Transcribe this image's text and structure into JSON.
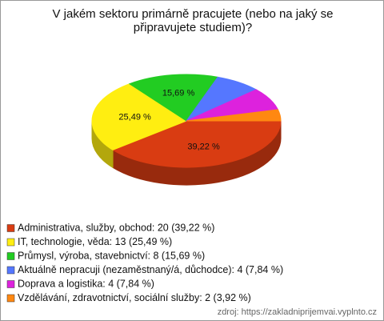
{
  "chart_data": {
    "type": "pie3d",
    "title": "V jakém sektoru primárně pracujete (nebo na jaký se připravujete studiem)?",
    "categories": [
      "Administrativa, služby, obchod: 20 (39,22 %)",
      "IT, technologie, věda: 13 (25,49 %)",
      "Průmysl, výroba, stavebnictví: 8 (15,69 %)",
      "Aktuálně nepracuji (nezaměstnaný/á, důchodce): 4 (7,84 %)",
      "Doprava a logistika: 4 (7,84 %)",
      "Vzdělávání, zdravotnictví, sociální služby: 2 (3,92 %)"
    ],
    "values": [
      39.22,
      25.49,
      15.69,
      7.84,
      7.84,
      3.92
    ],
    "value_labels": [
      "39,22 %",
      "25,49 %",
      "15,69 %",
      null,
      null,
      null
    ],
    "colors": [
      "#d93c12",
      "#ffee11",
      "#22cc22",
      "#5577ff",
      "#dd22dd",
      "#ff8811"
    ],
    "source": "zdroj: https://zakladniprijemvai.vyplnto.cz"
  }
}
